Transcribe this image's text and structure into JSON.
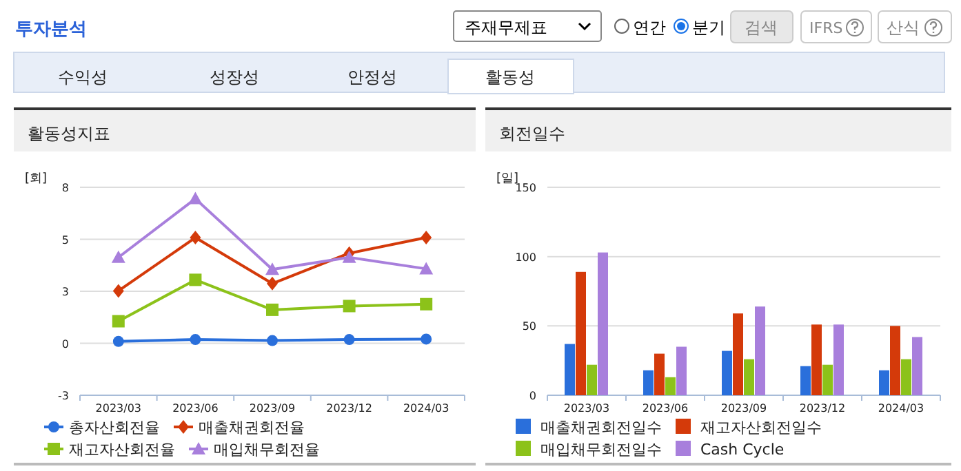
{
  "chart_data": [
    {
      "type": "other",
      "title": "투자분석",
      "annotations": [
        "주재무제표",
        "연간",
        "분기",
        "검색",
        "IFRS",
        "산식",
        "수익성",
        "성장성",
        "안정성",
        "활동성"
      ]
    },
    {
      "type": "line",
      "title": "활동성지표",
      "ylabel": "[회]",
      "categories": [
        "2023/03",
        "2023/06",
        "2023/09",
        "2023/12",
        "2024/03"
      ],
      "ylim": [
        -2.5,
        7.5
      ],
      "yticks": [
        {
          "value": -2.5,
          "label": "-3"
        },
        0,
        {
          "value": 2.5,
          "label": "3"
        },
        5,
        {
          "value": 7.5,
          "label": "8"
        }
      ],
      "grid": "y",
      "legend": "bottom",
      "line_style": "solid",
      "series": [
        {
          "name": "총자산회전율",
          "color": "#2a6fdb",
          "marker": "circle",
          "values": [
            0.09,
            0.18,
            0.13,
            0.18,
            0.2
          ]
        },
        {
          "name": "매출채권회전율",
          "color": "#d43a0a",
          "marker": "diamond",
          "values": [
            2.52,
            5.08,
            2.87,
            4.33,
            5.08
          ]
        },
        {
          "name": "재고자산회전율",
          "color": "#8cc21a",
          "marker": "square",
          "values": [
            1.06,
            3.05,
            1.61,
            1.79,
            1.88
          ]
        },
        {
          "name": "매입채무회전율",
          "color": "#a87fdc",
          "marker": "triangle",
          "values": [
            4.13,
            6.95,
            3.55,
            4.13,
            3.58
          ]
        }
      ]
    },
    {
      "type": "bar",
      "title": "회전일수",
      "ylabel": "[일]",
      "categories": [
        "2023/03",
        "2023/06",
        "2023/09",
        "2023/12",
        "2024/03"
      ],
      "ylim": [
        0,
        150
      ],
      "yticks": [
        0,
        50,
        100,
        150
      ],
      "grid": "y",
      "legend": "bottom",
      "series": [
        {
          "name": "매출채권회전일수",
          "color": "#2a6fdb",
          "values": [
            37,
            18,
            32,
            21,
            18
          ]
        },
        {
          "name": "재고자산회전일수",
          "color": "#d43a0a",
          "values": [
            89,
            30,
            59,
            51,
            50
          ]
        },
        {
          "name": "매입채무회전일수",
          "color": "#8cc21a",
          "values": [
            22,
            13,
            26,
            22,
            26
          ]
        },
        {
          "name": "Cash Cycle",
          "color": "#a87fdc",
          "values": [
            103,
            35,
            64,
            51,
            42
          ]
        }
      ]
    }
  ]
}
